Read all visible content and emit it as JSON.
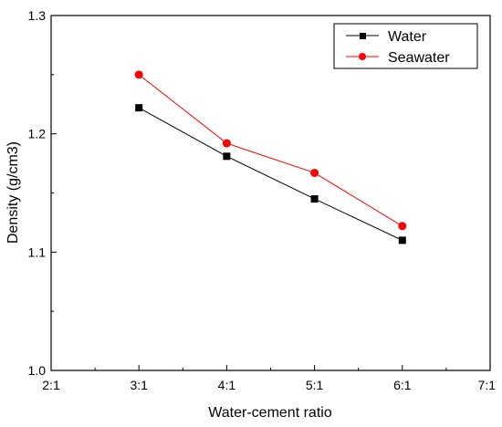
{
  "chart_data": {
    "type": "line",
    "title": "",
    "xlabel": "Water-cement ratio",
    "ylabel": "Density (g/cm3)",
    "categories": [
      "2:1",
      "3:1",
      "4:1",
      "5:1",
      "6:1",
      "7:1"
    ],
    "x": [
      "3:1",
      "4:1",
      "5:1",
      "6:1"
    ],
    "ylim": [
      1.0,
      1.3
    ],
    "yticks": [
      "1.0",
      "1.1",
      "1.2",
      "1.3"
    ],
    "grid": false,
    "legend_position": "top-right",
    "series": [
      {
        "name": "Water",
        "values": [
          1.222,
          1.181,
          1.145,
          1.11
        ],
        "color": "#000000",
        "marker": "square"
      },
      {
        "name": "Seawater",
        "values": [
          1.25,
          1.192,
          1.167,
          1.122
        ],
        "color": "#ff0000",
        "marker": "circle"
      }
    ]
  }
}
